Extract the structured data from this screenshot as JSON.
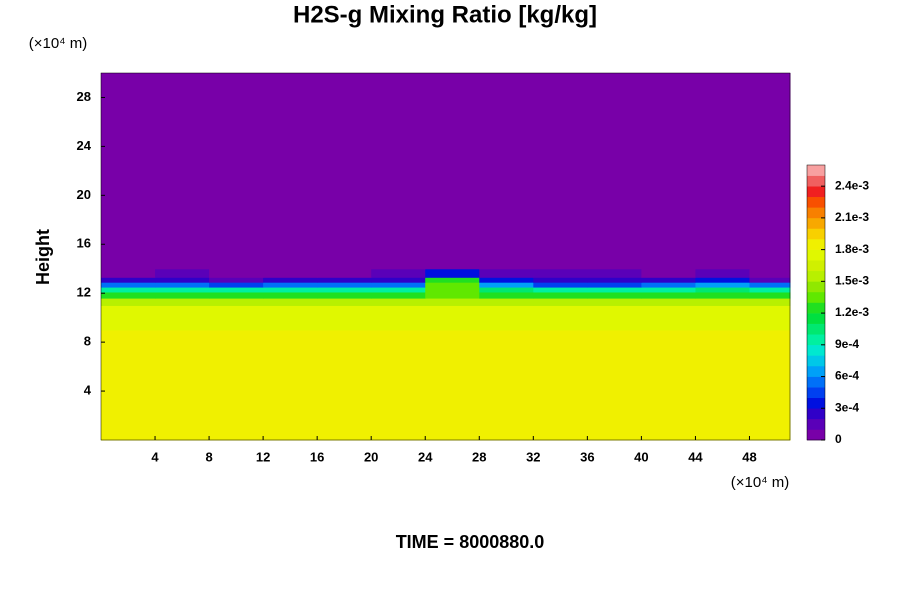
{
  "chart_data": {
    "type": "contour",
    "title": "H2S-g Mixing Ratio [kg/kg]",
    "ylabel": "Height",
    "yunit": "(×10⁴ m)",
    "xunit": "(×10⁴ m)",
    "footer": "TIME = 8000880.0",
    "xlim": [
      0,
      51
    ],
    "ylim": [
      0,
      30
    ],
    "xticks": [
      4,
      8,
      12,
      16,
      20,
      24,
      28,
      32,
      36,
      40,
      44,
      48
    ],
    "yticks": [
      4,
      8,
      12,
      16,
      20,
      24,
      28
    ],
    "xedges": [
      0,
      4,
      8,
      12,
      16,
      20,
      24,
      28,
      32,
      36,
      40,
      44,
      48,
      51
    ],
    "yedges": [
      0,
      9,
      10,
      11,
      11.6,
      12.1,
      12.5,
      12.9,
      13.3,
      14,
      30
    ],
    "z": [
      [
        0.00185,
        0.00185,
        0.00185,
        0.00185,
        0.00185,
        0.00185,
        0.00185,
        0.00185,
        0.00185,
        0.00185,
        0.00185,
        0.00185,
        0.00185
      ],
      [
        0.00175,
        0.00175,
        0.00172,
        0.00175,
        0.00175,
        0.00175,
        0.00172,
        0.00175,
        0.00175,
        0.00175,
        0.00175,
        0.00175,
        0.00175
      ],
      [
        0.0017,
        0.0017,
        0.0017,
        0.0017,
        0.0017,
        0.0017,
        0.0017,
        0.0017,
        0.0017,
        0.0017,
        0.0017,
        0.0017,
        0.0017
      ],
      [
        0.00155,
        0.00155,
        0.00155,
        0.00155,
        0.00155,
        0.00155,
        0.0015,
        0.00155,
        0.00155,
        0.00155,
        0.00155,
        0.00155,
        0.00155
      ],
      [
        0.00125,
        0.00125,
        0.00125,
        0.00125,
        0.00125,
        0.00125,
        0.00135,
        0.00125,
        0.00125,
        0.00125,
        0.00125,
        0.00125,
        0.00125
      ],
      [
        0.0009,
        0.0009,
        0.0009,
        0.0009,
        0.0009,
        0.0009,
        0.0013,
        0.001,
        0.0009,
        0.0009,
        0.0009,
        0.001,
        0.0009
      ],
      [
        0.0005,
        0.0005,
        0.0004,
        0.0005,
        0.0005,
        0.0005,
        0.0013,
        0.0006,
        0.0004,
        0.0004,
        0.0005,
        0.0006,
        0.0005
      ],
      [
        0.0002,
        0.0002,
        0.0001,
        0.0002,
        0.0002,
        0.0002,
        0.0012,
        0.0003,
        0.0002,
        0.0002,
        0.0002,
        0.0003,
        0.0001
      ],
      [
        0,
        0.0001,
        0,
        0,
        0,
        0.0001,
        0.0003,
        0.0001,
        0.0001,
        0.0001,
        0,
        0.0001,
        0
      ],
      [
        0,
        0,
        0,
        0,
        0,
        0,
        0,
        0,
        0,
        0,
        0,
        0,
        0
      ]
    ],
    "colorbar_lim": [
      0,
      0.0026
    ],
    "colorbar_ticks": [
      0,
      {
        "value": 0.0003,
        "label": "3e-4"
      },
      {
        "value": 0.0006,
        "label": "6e-4"
      },
      {
        "value": 0.0009,
        "label": "9e-4"
      },
      {
        "value": 0.0012,
        "label": "1.2e-3"
      },
      {
        "value": 0.0015,
        "label": "1.5e-3"
      },
      {
        "value": 0.0018,
        "label": "1.8e-3"
      },
      {
        "value": 0.0021,
        "label": "2.1e-3"
      },
      {
        "value": 0.0024,
        "label": "2.4e-3"
      }
    ],
    "colors": [
      "#7800a8",
      "#5a00b8",
      "#3000c8",
      "#0010e0",
      "#0040f0",
      "#0070f8",
      "#00a0f8",
      "#00c8e8",
      "#00e8d0",
      "#00f0a0",
      "#00e870",
      "#00e040",
      "#20e020",
      "#60e800",
      "#90e800",
      "#b8f000",
      "#d0f000",
      "#e0f800",
      "#f0f000",
      "#f8d000",
      "#f8a800",
      "#f88000",
      "#f85000",
      "#f02020",
      "#f06060",
      "#f8a0a0"
    ]
  }
}
